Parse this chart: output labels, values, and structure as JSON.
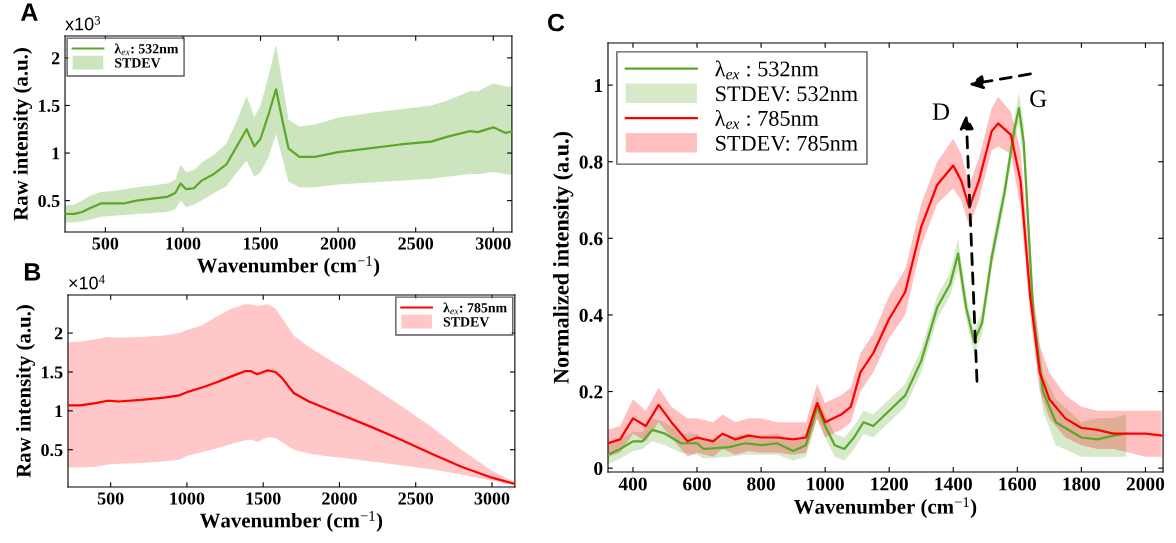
{
  "chart_data": [
    {
      "type": "line",
      "xlabel": "Wavenumber (cm$^{−1}$)",
      "ylabel": "Raw intensity (a.u.)",
      "annotations": [
        "A",
        "x10$^{3}$",
        "STDEV"
      ],
      "xlim": [
        240,
        3120
      ],
      "ylim": [
        0.17,
        2.23
      ],
      "xticks": [
        500,
        1000,
        1500,
        2000,
        2500,
        3000
      ],
      "yticks": [
        0.5,
        1,
        1.5,
        2
      ],
      "legend": "top left",
      "grid": false,
      "series": [
        {
          "name": "λ$_{ex}$: 532nm",
          "color": "#5aa829",
          "x": [
            240,
            300,
            350,
            400,
            470,
            550,
            620,
            700,
            800,
            900,
            950,
            985,
            1020,
            1070,
            1120,
            1200,
            1280,
            1350,
            1410,
            1460,
            1500,
            1550,
            1600,
            1640,
            1680,
            1750,
            1850,
            2000,
            2200,
            2400,
            2600,
            2700,
            2850,
            2900,
            3000,
            3080,
            3120
          ],
          "values": [
            0.36,
            0.36,
            0.38,
            0.42,
            0.47,
            0.47,
            0.47,
            0.5,
            0.52,
            0.54,
            0.58,
            0.68,
            0.62,
            0.63,
            0.71,
            0.78,
            0.88,
            1.08,
            1.25,
            1.07,
            1.15,
            1.4,
            1.67,
            1.35,
            1.05,
            0.96,
            0.96,
            1.01,
            1.05,
            1.09,
            1.12,
            1.17,
            1.23,
            1.22,
            1.27,
            1.21,
            1.23
          ],
          "lower": [
            0.27,
            0.27,
            0.28,
            0.3,
            0.33,
            0.34,
            0.35,
            0.36,
            0.37,
            0.38,
            0.41,
            0.5,
            0.43,
            0.46,
            0.5,
            0.58,
            0.65,
            0.8,
            0.92,
            0.75,
            0.8,
            0.95,
            1.2,
            0.95,
            0.7,
            0.64,
            0.64,
            0.67,
            0.69,
            0.71,
            0.73,
            0.75,
            0.78,
            0.78,
            0.8,
            0.78,
            0.77
          ],
          "upper": [
            0.45,
            0.46,
            0.5,
            0.55,
            0.59,
            0.6,
            0.62,
            0.64,
            0.66,
            0.68,
            0.72,
            0.88,
            0.8,
            0.82,
            0.9,
            0.98,
            1.1,
            1.35,
            1.6,
            1.38,
            1.5,
            1.8,
            2.14,
            1.75,
            1.35,
            1.28,
            1.3,
            1.37,
            1.42,
            1.46,
            1.5,
            1.55,
            1.65,
            1.65,
            1.73,
            1.7,
            1.7
          ]
        }
      ]
    },
    {
      "type": "line",
      "xlabel": "Wavenumber (cm$^{−1}$)",
      "ylabel": "Raw intensity (a.u.)",
      "annotations": [
        "B",
        "×10$^{4}$",
        "STDEV"
      ],
      "xlim": [
        220,
        3150
      ],
      "ylim": [
        0.02,
        2.49
      ],
      "xticks": [
        500,
        1000,
        1500,
        2000,
        2500,
        3000
      ],
      "yticks": [
        0.5,
        1,
        1.5,
        2
      ],
      "legend": "top right",
      "grid": false,
      "series": [
        {
          "name": "λ$_{ex}$: 785nm",
          "color": "#ff0000",
          "x": [
            220,
            300,
            400,
            480,
            550,
            700,
            850,
            950,
            1000,
            1100,
            1200,
            1300,
            1380,
            1420,
            1460,
            1530,
            1580,
            1620,
            1700,
            1800,
            1900,
            2000,
            2200,
            2400,
            2600,
            2800,
            3000,
            3150
          ],
          "values": [
            1.07,
            1.07,
            1.1,
            1.13,
            1.12,
            1.14,
            1.17,
            1.2,
            1.24,
            1.3,
            1.37,
            1.45,
            1.51,
            1.51,
            1.47,
            1.52,
            1.5,
            1.43,
            1.23,
            1.12,
            1.04,
            0.96,
            0.8,
            0.63,
            0.45,
            0.28,
            0.14,
            0.06
          ],
          "lower": [
            0.27,
            0.27,
            0.28,
            0.31,
            0.32,
            0.33,
            0.35,
            0.37,
            0.42,
            0.47,
            0.52,
            0.58,
            0.62,
            0.63,
            0.6,
            0.66,
            0.65,
            0.6,
            0.5,
            0.45,
            0.42,
            0.4,
            0.35,
            0.3,
            0.25,
            0.18,
            0.1,
            0.04
          ],
          "upper": [
            1.88,
            1.89,
            1.92,
            1.95,
            1.94,
            1.95,
            1.97,
            2.0,
            2.04,
            2.1,
            2.22,
            2.32,
            2.37,
            2.37,
            2.35,
            2.37,
            2.32,
            2.2,
            1.97,
            1.82,
            1.7,
            1.58,
            1.33,
            1.07,
            0.8,
            0.5,
            0.23,
            0.08
          ]
        }
      ]
    },
    {
      "type": "line",
      "xlabel": "Wavenumber (cm$^{−1}$)",
      "ylabel": "Normalized intensity (a.u.)",
      "annotations": [
        "C",
        "STDEV: 532nm",
        "STDEV: 785nm",
        "D",
        "G"
      ],
      "xlim": [
        322,
        2055
      ],
      "ylim": [
        -0.01,
        1.11
      ],
      "xticks": [
        400,
        600,
        800,
        1000,
        1200,
        1400,
        1600,
        1800,
        2000
      ],
      "yticks": [
        0,
        0.2,
        0.4,
        0.6,
        0.8,
        1
      ],
      "legend": "top left",
      "grid": false,
      "series": [
        {
          "name": "λ$_{ex}$ : 532nm",
          "color": "#5aa829",
          "x": [
            322,
            360,
            400,
            430,
            460,
            500,
            550,
            600,
            620,
            700,
            750,
            800,
            850,
            900,
            940,
            975,
            1000,
            1030,
            1060,
            1090,
            1120,
            1150,
            1200,
            1250,
            1300,
            1350,
            1390,
            1415,
            1440,
            1465,
            1490,
            1520,
            1560,
            1590,
            1605,
            1620,
            1650,
            1680,
            1720,
            1800,
            1850,
            1900,
            1940
          ],
          "values": [
            0.035,
            0.05,
            0.07,
            0.07,
            0.1,
            0.09,
            0.065,
            0.065,
            0.05,
            0.055,
            0.065,
            0.06,
            0.065,
            0.045,
            0.06,
            0.16,
            0.11,
            0.06,
            0.05,
            0.08,
            0.12,
            0.11,
            0.15,
            0.19,
            0.28,
            0.42,
            0.48,
            0.56,
            0.42,
            0.33,
            0.38,
            0.55,
            0.72,
            0.88,
            0.94,
            0.85,
            0.4,
            0.2,
            0.12,
            0.08,
            0.075,
            0.085,
            0.09
          ],
          "lower": [
            0.01,
            0.025,
            0.045,
            0.05,
            0.07,
            0.06,
            0.04,
            0.035,
            0.025,
            0.03,
            0.035,
            0.035,
            0.035,
            0.02,
            0.03,
            0.13,
            0.08,
            0.03,
            0.02,
            0.05,
            0.09,
            0.08,
            0.12,
            0.16,
            0.25,
            0.39,
            0.45,
            0.52,
            0.39,
            0.3,
            0.35,
            0.52,
            0.69,
            0.85,
            0.9,
            0.8,
            0.35,
            0.15,
            0.06,
            0.03,
            0.03,
            0.03,
            0.03
          ],
          "upper": [
            0.06,
            0.075,
            0.095,
            0.095,
            0.13,
            0.12,
            0.09,
            0.09,
            0.075,
            0.08,
            0.09,
            0.085,
            0.09,
            0.07,
            0.09,
            0.19,
            0.14,
            0.09,
            0.08,
            0.11,
            0.15,
            0.14,
            0.18,
            0.22,
            0.31,
            0.45,
            0.51,
            0.6,
            0.45,
            0.36,
            0.41,
            0.58,
            0.75,
            0.91,
            0.98,
            0.9,
            0.45,
            0.25,
            0.18,
            0.12,
            0.13,
            0.13,
            0.14
          ]
        },
        {
          "name": "λ$_{ex}$ : 785nm",
          "color": "#ff0000",
          "x": [
            322,
            360,
            400,
            440,
            480,
            520,
            570,
            600,
            650,
            680,
            720,
            760,
            800,
            850,
            900,
            940,
            975,
            1000,
            1050,
            1080,
            1110,
            1150,
            1200,
            1250,
            1300,
            1350,
            1400,
            1425,
            1450,
            1480,
            1520,
            1540,
            1580,
            1610,
            1640,
            1670,
            1700,
            1750,
            1800,
            1850,
            1900,
            1950,
            2000,
            2050
          ],
          "values": [
            0.065,
            0.075,
            0.13,
            0.11,
            0.165,
            0.12,
            0.07,
            0.08,
            0.07,
            0.09,
            0.075,
            0.085,
            0.08,
            0.08,
            0.075,
            0.08,
            0.17,
            0.12,
            0.14,
            0.16,
            0.25,
            0.3,
            0.39,
            0.46,
            0.63,
            0.74,
            0.79,
            0.75,
            0.68,
            0.75,
            0.88,
            0.9,
            0.87,
            0.75,
            0.45,
            0.25,
            0.18,
            0.13,
            0.105,
            0.1,
            0.09,
            0.09,
            0.09,
            0.085
          ],
          "lower": [
            0.03,
            0.04,
            0.09,
            0.07,
            0.12,
            0.08,
            0.03,
            0.04,
            0.03,
            0.05,
            0.035,
            0.045,
            0.04,
            0.04,
            0.035,
            0.04,
            0.13,
            0.08,
            0.1,
            0.12,
            0.2,
            0.25,
            0.34,
            0.4,
            0.58,
            0.69,
            0.73,
            0.7,
            0.63,
            0.7,
            0.83,
            0.84,
            0.82,
            0.68,
            0.4,
            0.2,
            0.13,
            0.08,
            0.06,
            0.05,
            0.05,
            0.04,
            0.03,
            0.03
          ],
          "upper": [
            0.1,
            0.11,
            0.18,
            0.15,
            0.21,
            0.16,
            0.13,
            0.13,
            0.12,
            0.14,
            0.12,
            0.13,
            0.13,
            0.12,
            0.12,
            0.12,
            0.22,
            0.17,
            0.19,
            0.21,
            0.3,
            0.35,
            0.45,
            0.52,
            0.69,
            0.8,
            0.86,
            0.82,
            0.74,
            0.81,
            0.94,
            0.97,
            0.93,
            0.83,
            0.52,
            0.32,
            0.25,
            0.19,
            0.16,
            0.15,
            0.15,
            0.15,
            0.15,
            0.15
          ]
        }
      ]
    }
  ]
}
